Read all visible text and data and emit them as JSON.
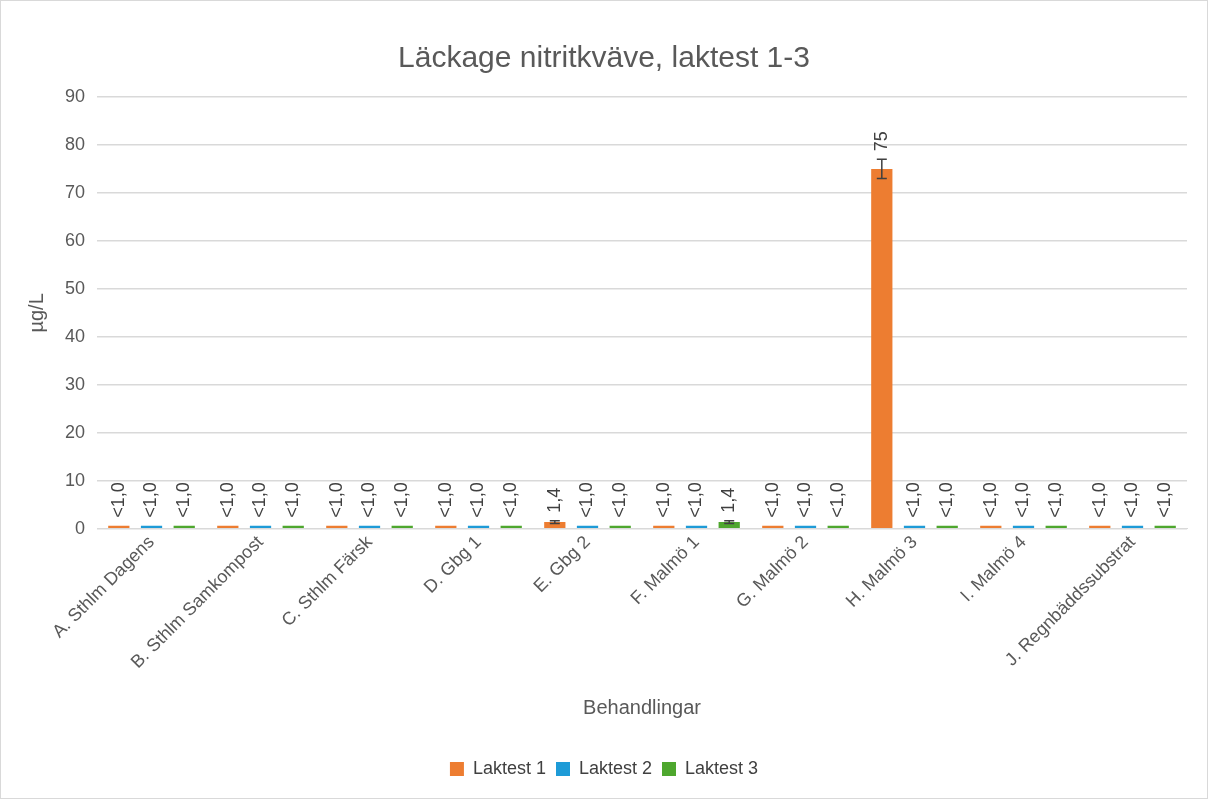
{
  "chart_data": {
    "type": "bar",
    "title": "Läckage nitritkväve, laktest 1-3",
    "xlabel": "Behandlingar",
    "ylabel": "µg/L",
    "categories": [
      "A. Sthlm Dagens",
      "B. Sthlm Samkompost",
      "C. Sthlm Färsk",
      "D. Gbg 1",
      "E. Gbg 2",
      "F. Malmö 1",
      "G. Malmö 2",
      "H. Malmö 3",
      "I. Malmö 4",
      "J. Regnbäddssubstrat"
    ],
    "series": [
      {
        "name": "Laktest 1",
        "color": "#ed7d31",
        "values": [
          0,
          0,
          0,
          0,
          1.4,
          0,
          0,
          75,
          0,
          0
        ],
        "errors": [
          null,
          null,
          null,
          null,
          0.3,
          null,
          null,
          2,
          null,
          null
        ],
        "value_labels": [
          "<1,0",
          "<1,0",
          "<1,0",
          "<1,0",
          "1,4",
          "<1,0",
          "<1,0",
          "75",
          "<1,0",
          "<1,0"
        ]
      },
      {
        "name": "Laktest 2",
        "color": "#1e9bd7",
        "values": [
          0,
          0,
          0,
          0,
          0,
          0,
          0,
          0,
          0,
          0
        ],
        "value_labels": [
          "<1,0",
          "<1,0",
          "<1,0",
          "<1,0",
          "<1,0",
          "<1,0",
          "<1,0",
          "<1,0",
          "<1,0",
          "<1,0"
        ]
      },
      {
        "name": "Laktest 3",
        "color": "#4ea72e",
        "values": [
          0,
          0,
          0,
          0,
          0,
          1.4,
          0,
          0,
          0,
          0
        ],
        "errors": [
          null,
          null,
          null,
          null,
          null,
          0.3,
          null,
          null,
          null,
          null
        ],
        "value_labels": [
          "<1,0",
          "<1,0",
          "<1,0",
          "<1,0",
          "<1,0",
          "1,4",
          "<1,0",
          "<1,0",
          "<1,0",
          "<1,0"
        ]
      }
    ],
    "ylim": [
      0,
      90
    ],
    "yticks": [
      0,
      10,
      20,
      30,
      40,
      50,
      60,
      70,
      80,
      90
    ],
    "grid": "y",
    "legend": "bottom"
  }
}
